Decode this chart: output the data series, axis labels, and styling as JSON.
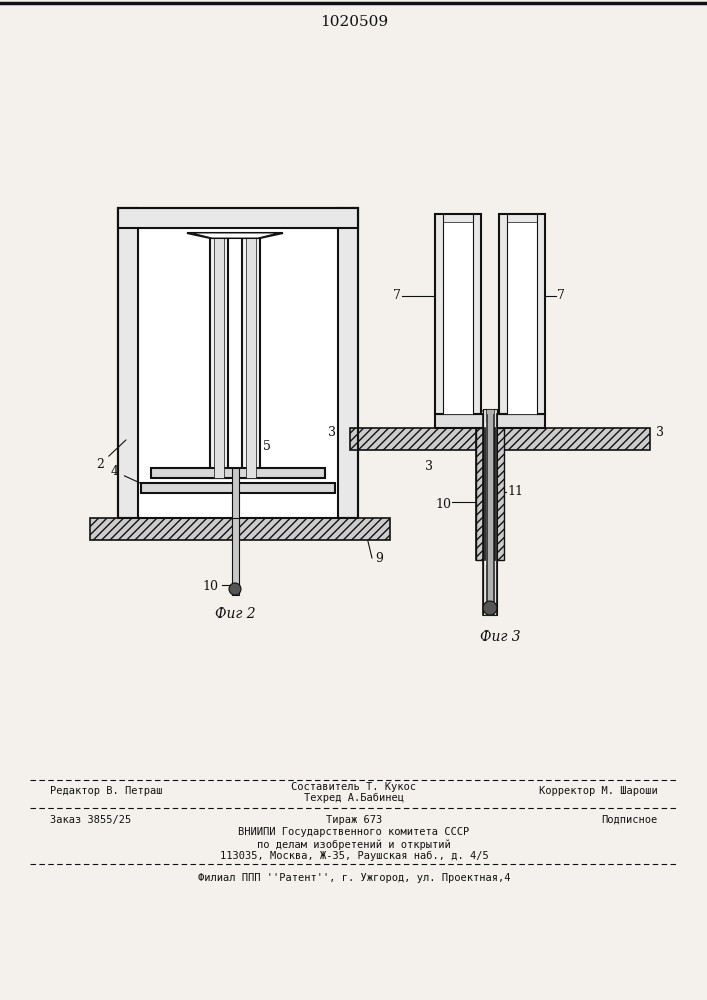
{
  "patent_number": "1020509",
  "fig2_label": "Фиг 2",
  "fig3_label": "Фиг 3",
  "footer_line1_left": "Редактор В. Петраш",
  "footer_line1_center_top": "Составитель Т. Кукос",
  "footer_line1_center_bot": "Техред А.Бабинец",
  "footer_line1_right": "Корректор М. Шароши",
  "footer_line2_left": "Заказ 3855/25",
  "footer_line2_center": "Тираж 673",
  "footer_line2_right": "Подписное",
  "footer_line3": "ВНИИПИ Государственного комитета СССР",
  "footer_line4": "по делам изобретений и открытий",
  "footer_line5": "113035, Москва, Ж-35, Раушская наб., д. 4/5",
  "footer_line6": "Филиал ППП ''Pатент'', г. Ужгород, ул. Проектная,4",
  "bg_color": "#f4f1ec",
  "line_color": "#111111",
  "text_color": "#111111"
}
